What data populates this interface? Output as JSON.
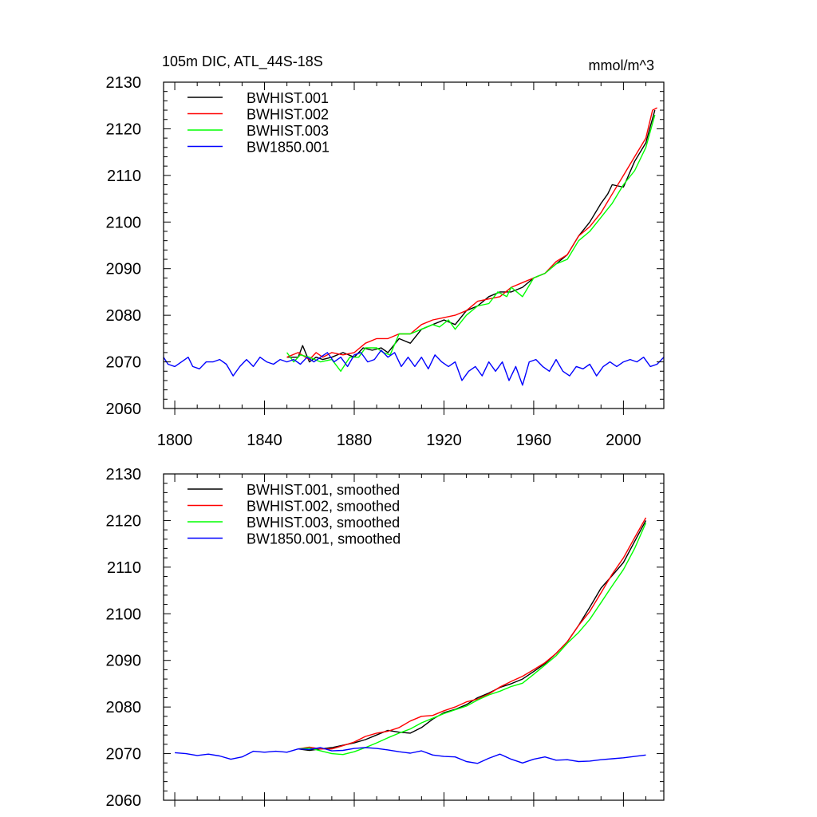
{
  "title_left": "105m DIC, ATL_44S-18S",
  "title_right": "mmol/m^3",
  "colors": {
    "BWHIST.001": "#000000",
    "BWHIST.002": "#ff0000",
    "BWHIST.003": "#00ff00",
    "BW1850.001": "#0000ff"
  },
  "chart_data": [
    {
      "type": "line",
      "title": "105m DIC, ATL_44S-18S",
      "units": "mmol/m^3",
      "xlim": [
        1795,
        2018
      ],
      "ylim": [
        2060,
        2130
      ],
      "x_ticks": [
        1800,
        1840,
        1880,
        1920,
        1960,
        2000
      ],
      "y_ticks": [
        2060,
        2070,
        2080,
        2090,
        2100,
        2110,
        2120,
        2130
      ],
      "grid": false,
      "legend_position": "top-left",
      "series": [
        {
          "name": "BWHIST.001",
          "color": "#000000",
          "x": [
            1850,
            1855,
            1857,
            1860,
            1863,
            1866,
            1870,
            1875,
            1880,
            1884,
            1888,
            1892,
            1895,
            1900,
            1905,
            1910,
            1915,
            1920,
            1925,
            1930,
            1935,
            1940,
            1945,
            1950,
            1955,
            1960,
            1965,
            1970,
            1975,
            1980,
            1985,
            1990,
            1993,
            1995,
            2000,
            2005,
            2010,
            2012,
            2014
          ],
          "y": [
            2071,
            2071,
            2073.5,
            2070,
            2071,
            2070.5,
            2071,
            2072,
            2071,
            2073,
            2072.5,
            2073,
            2072,
            2075,
            2074,
            2077,
            2078,
            2079,
            2078,
            2081,
            2082,
            2084,
            2085,
            2085,
            2086,
            2088,
            2089,
            2091,
            2093,
            2097,
            2100,
            2104,
            2106,
            2108,
            2107.5,
            2113,
            2117,
            2120.5,
            2124
          ]
        },
        {
          "name": "BWHIST.002",
          "color": "#ff0000",
          "x": [
            1850,
            1855,
            1860,
            1863,
            1866,
            1870,
            1875,
            1880,
            1885,
            1890,
            1895,
            1900,
            1905,
            1910,
            1915,
            1920,
            1925,
            1930,
            1935,
            1940,
            1945,
            1950,
            1955,
            1960,
            1965,
            1970,
            1975,
            1980,
            1985,
            1990,
            1995,
            2000,
            2005,
            2010,
            2013,
            2015
          ],
          "y": [
            2071,
            2072,
            2070.5,
            2072,
            2071,
            2072,
            2071.5,
            2072,
            2074,
            2075,
            2075,
            2076,
            2076,
            2078,
            2079,
            2079.5,
            2080,
            2081,
            2083,
            2083.5,
            2084,
            2086,
            2087,
            2088,
            2089,
            2091.5,
            2093,
            2097,
            2099,
            2102,
            2106,
            2110,
            2114,
            2118,
            2124,
            2124.5
          ]
        },
        {
          "name": "BWHIST.003",
          "color": "#00ff00",
          "x": [
            1850,
            1853,
            1856,
            1860,
            1865,
            1870,
            1874,
            1878,
            1882,
            1885,
            1890,
            1893,
            1896,
            1900,
            1905,
            1910,
            1915,
            1918,
            1922,
            1925,
            1930,
            1935,
            1940,
            1944,
            1948,
            1950,
            1955,
            1960,
            1965,
            1970,
            1975,
            1980,
            1985,
            1990,
            1995,
            2000,
            2005,
            2010,
            2014
          ],
          "y": [
            2072,
            2070,
            2071.5,
            2071,
            2070,
            2070.5,
            2068,
            2071,
            2071,
            2073,
            2073,
            2072,
            2071.5,
            2076,
            2076,
            2077,
            2078,
            2077.5,
            2079,
            2077,
            2080,
            2082,
            2082.5,
            2085,
            2084,
            2086,
            2084,
            2088,
            2089,
            2091,
            2092,
            2096,
            2098,
            2101,
            2104,
            2108,
            2111,
            2116,
            2123
          ]
        },
        {
          "name": "BW1850.001",
          "color": "#0000ff",
          "x": [
            1795,
            1797,
            1800,
            1803,
            1806,
            1808,
            1811,
            1814,
            1817,
            1820,
            1823,
            1826,
            1829,
            1832,
            1835,
            1838,
            1841,
            1844,
            1847,
            1850,
            1853,
            1856,
            1859,
            1862,
            1865,
            1868,
            1871,
            1874,
            1877,
            1880,
            1883,
            1886,
            1889,
            1892,
            1895,
            1898,
            1901,
            1904,
            1907,
            1910,
            1913,
            1916,
            1919,
            1922,
            1925,
            1928,
            1931,
            1934,
            1937,
            1940,
            1943,
            1946,
            1949,
            1952,
            1955,
            1958,
            1961,
            1964,
            1967,
            1970,
            1973,
            1976,
            1979,
            1982,
            1985,
            1988,
            1991,
            1994,
            1997,
            2000,
            2003,
            2006,
            2009,
            2012,
            2015,
            2018
          ],
          "y": [
            2071,
            2069.5,
            2069,
            2070,
            2071,
            2069,
            2068.5,
            2070,
            2070,
            2070.5,
            2069.5,
            2067,
            2069,
            2070.5,
            2069,
            2071,
            2070,
            2069.5,
            2070.5,
            2070,
            2070.5,
            2069.5,
            2071,
            2070,
            2071,
            2072,
            2070,
            2071,
            2069,
            2071.5,
            2072,
            2070,
            2070.5,
            2072.5,
            2071,
            2072,
            2069,
            2071,
            2069,
            2071,
            2068.5,
            2071.5,
            2070,
            2069,
            2070,
            2066,
            2068,
            2069,
            2067,
            2070,
            2068,
            2070,
            2066,
            2069,
            2065,
            2070,
            2070.5,
            2069,
            2068,
            2070.5,
            2068,
            2067,
            2069,
            2068.5,
            2069.5,
            2067,
            2069,
            2070,
            2069,
            2070,
            2070.5,
            2070,
            2071,
            2069,
            2069.5,
            2071
          ]
        }
      ]
    },
    {
      "type": "line",
      "xlim": [
        1795,
        2018
      ],
      "ylim": [
        2060,
        2130
      ],
      "y_ticks": [
        2060,
        2070,
        2080,
        2090,
        2100,
        2110,
        2120,
        2130
      ],
      "grid": false,
      "legend_position": "top-left",
      "series": [
        {
          "name": "BWHIST.001, smoothed",
          "color": "#000000",
          "x": [
            1855,
            1860,
            1865,
            1870,
            1875,
            1880,
            1885,
            1890,
            1895,
            1900,
            1905,
            1910,
            1915,
            1920,
            1925,
            1930,
            1935,
            1940,
            1945,
            1950,
            1955,
            1960,
            1965,
            1970,
            1975,
            1980,
            1985,
            1990,
            1995,
            2000,
            2005,
            2010
          ],
          "y": [
            2071,
            2070.7,
            2071,
            2071.3,
            2071.8,
            2072.3,
            2073,
            2074,
            2075,
            2074.6,
            2074.4,
            2075.6,
            2077.4,
            2078.8,
            2079.5,
            2080.5,
            2082,
            2083,
            2084.2,
            2085,
            2086,
            2087.6,
            2089.3,
            2091.5,
            2094,
            2097.5,
            2101.4,
            2105.5,
            2108.2,
            2111,
            2115.5,
            2120
          ]
        },
        {
          "name": "BWHIST.002, smoothed",
          "color": "#ff0000",
          "x": [
            1855,
            1860,
            1865,
            1870,
            1875,
            1880,
            1885,
            1890,
            1895,
            1900,
            1905,
            1910,
            1915,
            1920,
            1925,
            1930,
            1935,
            1940,
            1945,
            1950,
            1955,
            1960,
            1965,
            1970,
            1975,
            1980,
            1985,
            1990,
            1995,
            2000,
            2005,
            2010
          ],
          "y": [
            2071,
            2071.4,
            2071,
            2071,
            2071.7,
            2072.5,
            2073.7,
            2074.4,
            2074.8,
            2075.6,
            2077,
            2078,
            2078.2,
            2079.2,
            2080,
            2081.1,
            2081.7,
            2082.8,
            2084.3,
            2085.5,
            2086.6,
            2088,
            2089.5,
            2091.5,
            2094,
            2097.5,
            2100.5,
            2104.5,
            2108.5,
            2112,
            2116.3,
            2120.6
          ]
        },
        {
          "name": "BWHIST.003, smoothed",
          "color": "#00ff00",
          "x": [
            1855,
            1860,
            1865,
            1870,
            1875,
            1880,
            1885,
            1890,
            1895,
            1900,
            1905,
            1910,
            1915,
            1920,
            1925,
            1930,
            1935,
            1940,
            1945,
            1950,
            1955,
            1960,
            1965,
            1970,
            1975,
            1980,
            1985,
            1990,
            1995,
            2000,
            2005,
            2010
          ],
          "y": [
            2071,
            2071.2,
            2070.6,
            2070,
            2069.8,
            2070.4,
            2071.3,
            2072.3,
            2073.4,
            2074.4,
            2075.3,
            2076.6,
            2077.6,
            2078.6,
            2079.4,
            2080.2,
            2081.5,
            2082.6,
            2083.4,
            2084.4,
            2085.1,
            2087,
            2089,
            2091,
            2093.7,
            2096,
            2098.8,
            2102.4,
            2106,
            2109.5,
            2114,
            2119.5
          ]
        },
        {
          "name": "BW1850.001, smoothed",
          "color": "#0000ff",
          "x": [
            1800,
            1805,
            1810,
            1815,
            1820,
            1825,
            1830,
            1835,
            1840,
            1845,
            1850,
            1855,
            1860,
            1865,
            1870,
            1875,
            1880,
            1885,
            1890,
            1895,
            1900,
            1905,
            1910,
            1915,
            1920,
            1925,
            1930,
            1935,
            1940,
            1945,
            1950,
            1955,
            1960,
            1965,
            1970,
            1975,
            1980,
            1985,
            1990,
            1995,
            2000,
            2005,
            2010
          ],
          "y": [
            2070.2,
            2070,
            2069.6,
            2069.9,
            2069.5,
            2068.8,
            2069.3,
            2070.5,
            2070.3,
            2070.5,
            2070.3,
            2071,
            2070.9,
            2071.3,
            2070.6,
            2070.7,
            2071.1,
            2071.3,
            2071.1,
            2070.8,
            2070.4,
            2070.1,
            2070.6,
            2069.7,
            2069.4,
            2069.3,
            2068.3,
            2067.9,
            2069,
            2069.9,
            2068.8,
            2068,
            2068.8,
            2069.3,
            2068.6,
            2068.7,
            2068.3,
            2068.4,
            2068.7,
            2068.9,
            2069.1,
            2069.4,
            2069.7
          ]
        }
      ]
    }
  ]
}
